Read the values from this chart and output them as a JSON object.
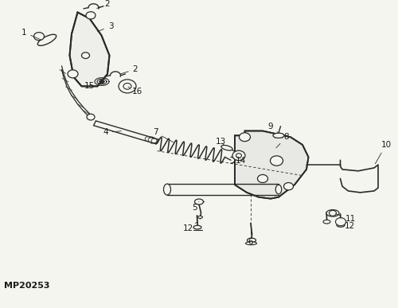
{
  "background_color": "#f5f5f0",
  "line_color": "#2a2a2a",
  "label_color": "#1a1a1a",
  "title_text": "MP20253",
  "title_fontsize": 8,
  "fig_width": 5.0,
  "fig_height": 3.87,
  "dpi": 100
}
